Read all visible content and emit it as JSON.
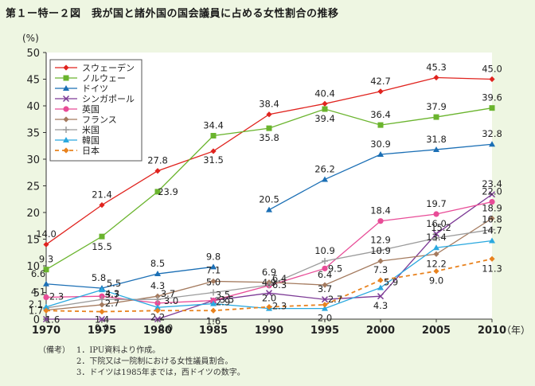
{
  "figure_title": "第１ー特ー２図　我が国と諸外国の国会議員に占める女性割合の推移",
  "notes": {
    "heading": "（備考）",
    "items": [
      "1．IPU資料より作成。",
      "2．下院又は一院制における女性議員割合。",
      "3．ドイツは1985年までは，西ドイツの数字。"
    ]
  },
  "chart_data": {
    "type": "line",
    "title": "第１ー特ー２図　我が国と諸外国の国会議員に占める女性割合の推移",
    "ylabel": "(%)",
    "xlabel": "",
    "x_unit_label": "（年）",
    "x": [
      1970,
      1975,
      1980,
      1985,
      1990,
      1995,
      2000,
      2005,
      2010
    ],
    "xlim": [
      1970,
      2010
    ],
    "ylim": [
      0,
      50
    ],
    "y_ticks": [
      0,
      5,
      10,
      15,
      20,
      25,
      30,
      35,
      40,
      45,
      50
    ],
    "grid": false,
    "legend_position": "top-left",
    "series": [
      {
        "name": "スウェーデン",
        "color": "#e0231e",
        "marker": "diamond",
        "dash": false,
        "values": [
          14.0,
          21.4,
          27.8,
          31.5,
          38.4,
          40.4,
          42.7,
          45.3,
          45.0
        ],
        "labels": [
          "14.0",
          "21.4",
          "27.8",
          "31.5",
          "38.4",
          "40.4",
          "42.7",
          "45.3",
          "45.0"
        ]
      },
      {
        "name": "ノルウェー",
        "color": "#6ab42d",
        "marker": "square",
        "dash": false,
        "values": [
          9.3,
          15.5,
          23.9,
          34.4,
          35.8,
          39.4,
          36.4,
          37.9,
          39.6
        ],
        "labels": [
          "9.3",
          "15.5",
          "23.9",
          "34.4",
          "35.8",
          "39.4",
          "36.4",
          "37.9",
          "39.6"
        ]
      },
      {
        "name": "ドイツ",
        "color": "#1b6fb5",
        "marker": "triangle",
        "dash": false,
        "values": [
          6.6,
          5.8,
          8.5,
          9.8,
          20.5,
          26.2,
          30.9,
          31.8,
          32.8
        ],
        "labels": [
          "6.6",
          "5.8",
          "8.5",
          "9.8",
          "20.5",
          "26.2",
          "30.9",
          "31.8",
          "32.8"
        ]
      },
      {
        "name": "シンガポール",
        "color": "#7d3b96",
        "marker": "x",
        "dash": false,
        "values": [
          0.0,
          0.0,
          0.0,
          3.5,
          4.9,
          3.7,
          4.3,
          16.0,
          23.4
        ],
        "labels": [
          "",
          "0.0",
          "0.0",
          "3.5",
          "4.9",
          "3.7",
          "4.3",
          "16.0",
          "23.4"
        ]
      },
      {
        "name": "英国",
        "color": "#e84c97",
        "marker": "circle",
        "dash": false,
        "values": [
          4.1,
          4.3,
          3.0,
          3.5,
          6.3,
          9.5,
          18.4,
          19.7,
          22.0
        ],
        "labels": [
          "4.1",
          "4.3",
          "3.0",
          "3.5",
          "6.3",
          "9.5",
          "18.4",
          "19.7",
          "22.0"
        ]
      },
      {
        "name": "フランス",
        "color": "#a47a5e",
        "marker": "diamond",
        "dash": false,
        "values": [
          1.7,
          2.7,
          4.3,
          7.1,
          6.9,
          6.4,
          10.9,
          12.2,
          18.9
        ],
        "labels": [
          "1.7",
          "2.7",
          "4.3",
          "7.1",
          "6.9",
          "6.4",
          "10.9",
          "12.2",
          "18.9"
        ]
      },
      {
        "name": "米国",
        "color": "#9b9b9b",
        "marker": "plus",
        "dash": false,
        "values": [
          2.1,
          3.7,
          3.7,
          5.0,
          6.4,
          10.9,
          12.9,
          15.2,
          16.8
        ],
        "labels": [
          "2.1",
          "3.7",
          "3.7",
          "5.0",
          "6.4",
          "10.9",
          "12.9",
          "15.2",
          "16.8"
        ]
      },
      {
        "name": "韓国",
        "color": "#2aa8df",
        "marker": "triangle",
        "dash": false,
        "values": [
          2.3,
          5.5,
          2.2,
          2.9,
          2.0,
          2.0,
          5.9,
          13.4,
          14.7
        ],
        "labels": [
          "2.3",
          "5.5",
          "2.2",
          "2.9",
          "2.0",
          "2.0",
          "5.9",
          "13.4",
          "14.7"
        ]
      },
      {
        "name": "日本",
        "color": "#e8821e",
        "marker": "diamond",
        "dash": true,
        "values": [
          1.6,
          1.4,
          1.6,
          1.6,
          2.3,
          2.7,
          7.3,
          9.0,
          11.3
        ],
        "labels": [
          "1.6",
          "1.4",
          "",
          "1.6",
          "2.3",
          "2.7",
          "7.3",
          "9.0",
          "11.3"
        ]
      }
    ]
  }
}
